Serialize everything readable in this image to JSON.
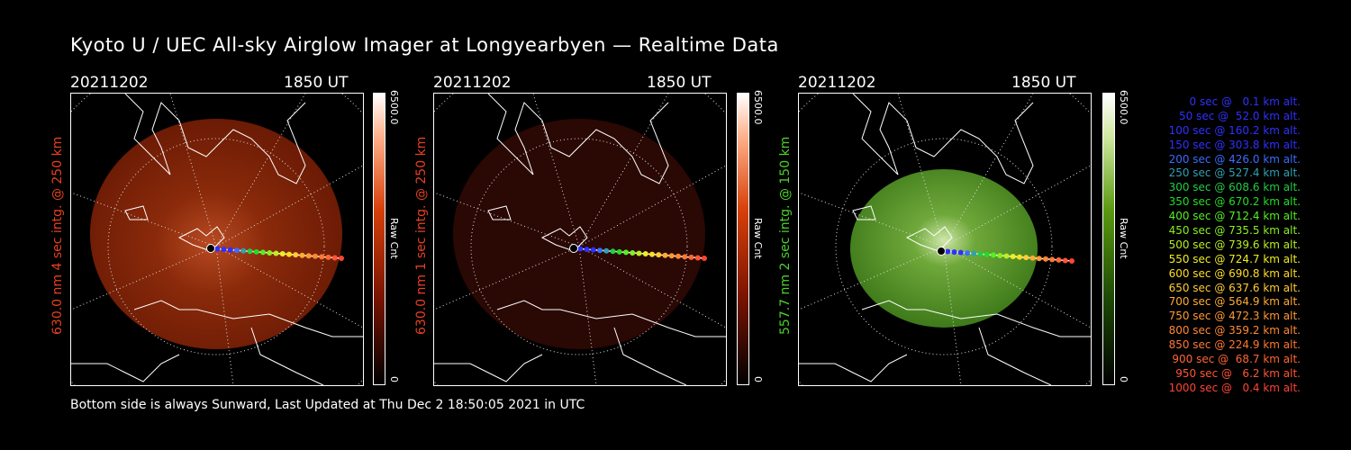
{
  "title": "Kyoto U / UEC All-sky Airglow Imager at Longyearbyen — Realtime Data",
  "footer": "Bottom side is always Sunward, Last Updated at Thu Dec  2 18:50:05 2021 in UTC",
  "colors": {
    "red": "#e8401f",
    "green": "#4bd12a",
    "text": "#ffffff"
  },
  "panels": [
    {
      "date": "20211202",
      "time": "1850 UT",
      "ylabel": "630.0 nm  4 sec intg. @ 250 km",
      "label_color": "#e8401f",
      "image_brightness": "bright-red",
      "cbar_max": "6500.0",
      "cbar_unit": "Raw Cnt",
      "cbar_min": "0"
    },
    {
      "date": "20211202",
      "time": "1850 UT",
      "ylabel": "630.0 nm  1 sec intg. @ 250 km",
      "label_color": "#e8401f",
      "image_brightness": "dim-red",
      "cbar_max": "6500.0",
      "cbar_unit": "Raw Cnt",
      "cbar_min": "0"
    },
    {
      "date": "20211202",
      "time": "1850 UT",
      "ylabel": "557.7 nm  2 sec intg. @ 150 km",
      "label_color": "#4bd12a",
      "image_brightness": "green",
      "cbar_max": "6500.0",
      "cbar_unit": "Raw Cnt",
      "cbar_min": "0"
    }
  ],
  "trajectory_legend": [
    {
      "text": "0 sec @   0.1 km alt.",
      "color": "#3030ff"
    },
    {
      "text": "50 sec @  52.0 km alt.",
      "color": "#3030ff"
    },
    {
      "text": "100 sec @ 160.2 km alt.",
      "color": "#3030ff"
    },
    {
      "text": "150 sec @ 303.8 km alt.",
      "color": "#3030ff"
    },
    {
      "text": "200 sec @ 426.0 km alt.",
      "color": "#3a6cff"
    },
    {
      "text": "250 sec @ 527.4 km alt.",
      "color": "#30a0b0"
    },
    {
      "text": "300 sec @ 608.6 km alt.",
      "color": "#22cc44"
    },
    {
      "text": "350 sec @ 670.2 km alt.",
      "color": "#22dd22"
    },
    {
      "text": "400 sec @ 712.4 km alt.",
      "color": "#55ee22"
    },
    {
      "text": "450 sec @ 735.5 km alt.",
      "color": "#88ee22"
    },
    {
      "text": "500 sec @ 739.6 km alt.",
      "color": "#bbee22"
    },
    {
      "text": "550 sec @ 724.7 km alt.",
      "color": "#eeee22"
    },
    {
      "text": "600 sec @ 690.8 km alt.",
      "color": "#ffdd22"
    },
    {
      "text": "650 sec @ 637.6 km alt.",
      "color": "#ffcc33"
    },
    {
      "text": "700 sec @ 564.9 km alt.",
      "color": "#ffaa33"
    },
    {
      "text": "750 sec @ 472.3 km alt.",
      "color": "#ff9933"
    },
    {
      "text": "800 sec @ 359.2 km alt.",
      "color": "#ff8833"
    },
    {
      "text": "850 sec @ 224.9 km alt.",
      "color": "#ff7733"
    },
    {
      "text": "900 sec @  68.7 km alt.",
      "color": "#ff6633"
    },
    {
      "text": "950 sec @   6.2 km alt.",
      "color": "#ff5533"
    },
    {
      "text": "1000 sec @   0.4 km alt.",
      "color": "#ff4433"
    }
  ]
}
